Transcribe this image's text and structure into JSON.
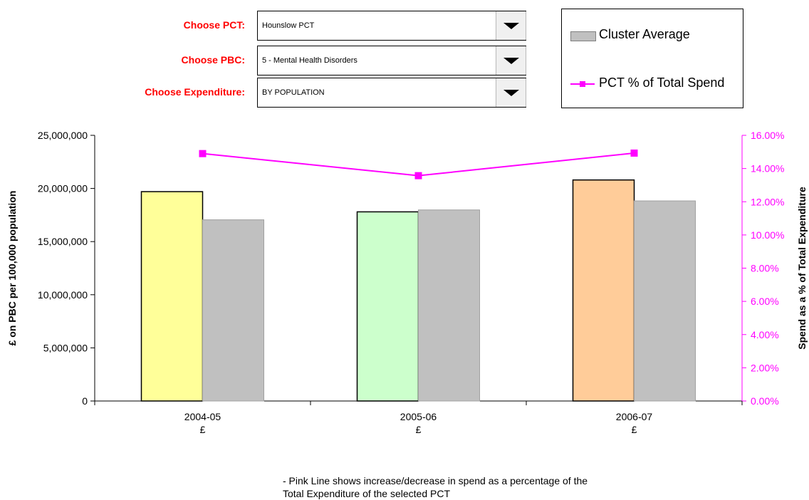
{
  "controls": {
    "pct_label": "Choose PCT:",
    "pct_value": "Hounslow PCT",
    "pbc_label": "Choose PBC:",
    "pbc_value": "5 - Mental Health Disorders",
    "exp_label": "Choose Expenditure:",
    "exp_value": "BY POPULATION"
  },
  "legend": {
    "cluster": "Cluster Average",
    "pct": "PCT % of Total Spend"
  },
  "note": {
    "line1": "- Pink Line shows increase/decrease in spend as a percentage of the",
    "line2": "Total Expenditure of the selected PCT"
  },
  "colors": {
    "bar_2004": "#ffff99",
    "bar_2005": "#ccffcc",
    "bar_2006": "#ffcc99",
    "cluster": "#c0c0c0",
    "line": "#ff00ff",
    "label_red": "#ff0000"
  },
  "chart_data": {
    "type": "bar",
    "categories": [
      "2004-05",
      "2005-06",
      "2006-07"
    ],
    "category_sublabel": "£",
    "series": [
      {
        "name": "PCT",
        "values": [
          19700000,
          17800000,
          20800000
        ]
      },
      {
        "name": "Cluster Average",
        "values": [
          17050000,
          17980000,
          18830000
        ]
      }
    ],
    "line_series": {
      "name": "PCT % of Total Spend",
      "values": [
        0.149,
        0.1357,
        0.1493
      ]
    },
    "ylabel": "£ on PBC per 100,000 population",
    "y2label": "Spend as a % of Total Expenditure",
    "ylim": [
      0,
      25000000
    ],
    "yticks": [
      0,
      5000000,
      10000000,
      15000000,
      20000000,
      25000000
    ],
    "ytick_labels": [
      "0",
      "5,000,000",
      "10,000,000",
      "15,000,000",
      "20,000,000",
      "25,000,000"
    ],
    "y2lim": [
      0,
      0.16
    ],
    "y2ticks": [
      0,
      0.02,
      0.04,
      0.06,
      0.08,
      0.1,
      0.12,
      0.14,
      0.16
    ],
    "y2tick_labels": [
      "0.00%",
      "2.00%",
      "4.00%",
      "6.00%",
      "8.00%",
      "10.00%",
      "12.00%",
      "14.00%",
      "16.00%"
    ],
    "grid": false,
    "legend_position": "top-right"
  }
}
